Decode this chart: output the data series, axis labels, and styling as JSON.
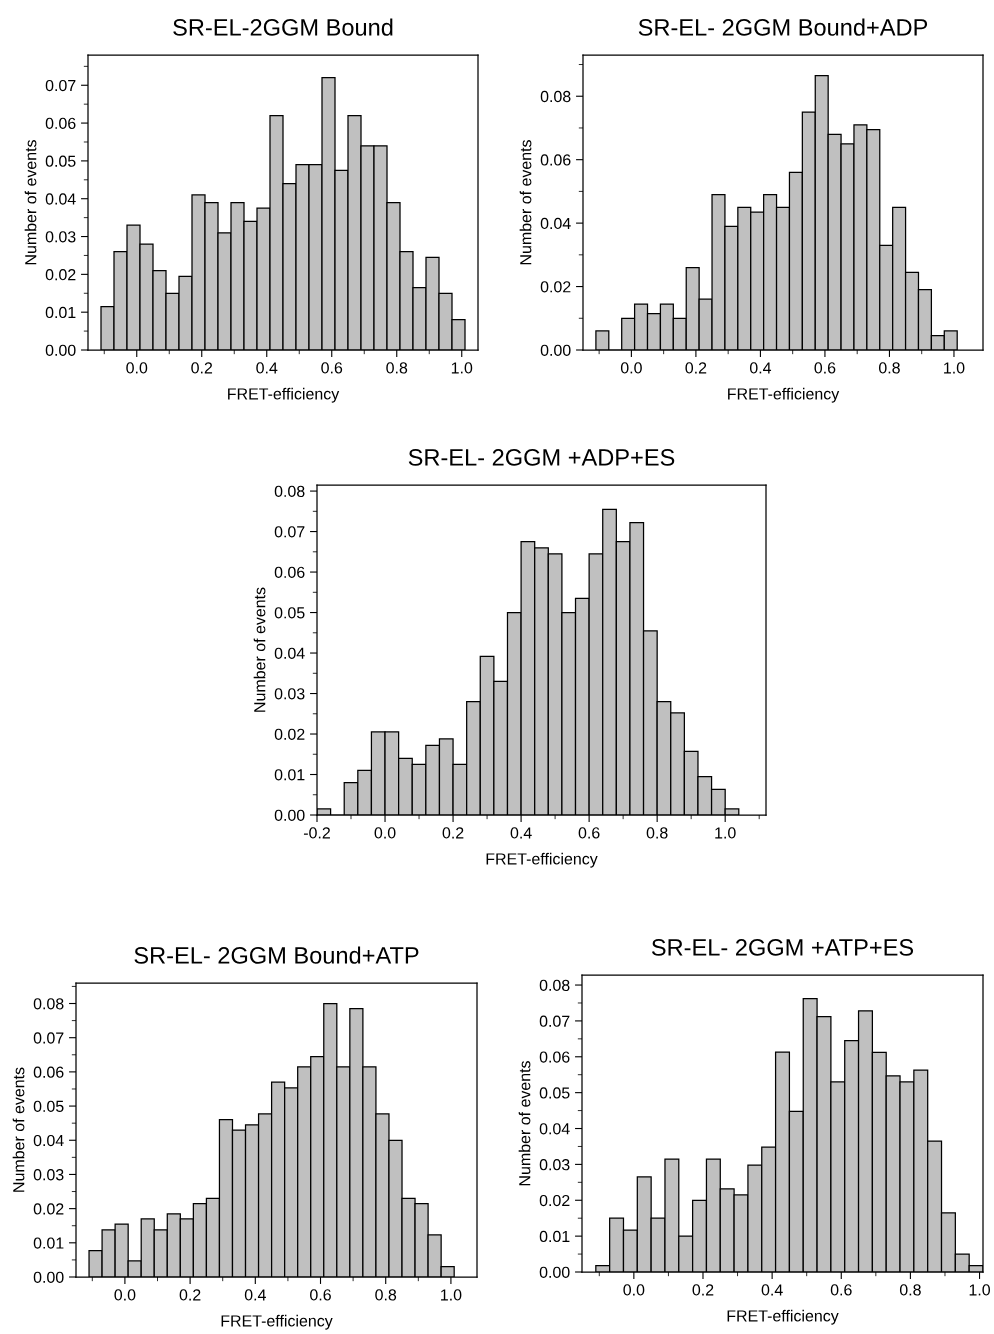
{
  "chart_data": [
    {
      "type": "histogram",
      "title": "SR-EL-2GGM Bound",
      "xlabel": "FRET-efficiency",
      "ylabel": "Number of events",
      "color": "#c0c0c0",
      "bins": [
        -0.11,
        -0.07,
        -0.03,
        0.01,
        0.05,
        0.09,
        0.13,
        0.17,
        0.21,
        0.25,
        0.29,
        0.33,
        0.37,
        0.41,
        0.45,
        0.49,
        0.53,
        0.57,
        0.61,
        0.65,
        0.69,
        0.73,
        0.77,
        0.81,
        0.85,
        0.89,
        0.93,
        0.97,
        1.01
      ],
      "values": [
        0.0115,
        0.026,
        0.033,
        0.028,
        0.021,
        0.015,
        0.0195,
        0.041,
        0.039,
        0.031,
        0.039,
        0.034,
        0.0375,
        0.062,
        0.044,
        0.049,
        0.049,
        0.072,
        0.0475,
        0.062,
        0.054,
        0.054,
        0.039,
        0.026,
        0.0165,
        0.0245,
        0.015,
        0.008
      ],
      "xlim": [
        -0.15,
        1.05
      ],
      "ylim": [
        0,
        0.078
      ],
      "xticks": [
        {
          "value": 0,
          "label": "0.0"
        },
        {
          "value": 0.2,
          "label": "0.2"
        },
        {
          "value": 0.4,
          "label": "0.4"
        },
        {
          "value": 0.6,
          "label": "0.6"
        },
        {
          "value": 0.8,
          "label": "0.8"
        },
        {
          "value": 1,
          "label": "1.0"
        }
      ],
      "yticks": [
        {
          "value": 0,
          "label": "0.00"
        },
        {
          "value": 0.01,
          "label": "0.01"
        },
        {
          "value": 0.02,
          "label": "0.02"
        },
        {
          "value": 0.03,
          "label": "0.03"
        },
        {
          "value": 0.04,
          "label": "0.04"
        },
        {
          "value": 0.05,
          "label": "0.05"
        },
        {
          "value": 0.06,
          "label": "0.06"
        },
        {
          "value": 0.07,
          "label": "0.07"
        }
      ],
      "grid": false
    },
    {
      "type": "histogram",
      "title": "SR-EL- 2GGM Bound+ADP",
      "xlabel": "FRET-efficiency",
      "ylabel": "Number of events",
      "color": "#c0c0c0",
      "bins": [
        -0.11,
        -0.07,
        -0.03,
        0.01,
        0.05,
        0.09,
        0.13,
        0.17,
        0.21,
        0.25,
        0.29,
        0.33,
        0.37,
        0.41,
        0.45,
        0.49,
        0.53,
        0.57,
        0.61,
        0.65,
        0.69,
        0.73,
        0.77,
        0.81,
        0.85,
        0.89,
        0.93,
        0.97,
        1.01
      ],
      "values": [
        0.006,
        0,
        0.01,
        0.0145,
        0.0115,
        0.0145,
        0.01,
        0.026,
        0.016,
        0.049,
        0.039,
        0.045,
        0.0435,
        0.049,
        0.045,
        0.056,
        0.075,
        0.0865,
        0.068,
        0.065,
        0.071,
        0.0695,
        0.033,
        0.045,
        0.0245,
        0.019,
        0.0045,
        0.006
      ],
      "xlim": [
        -0.15,
        1.09
      ],
      "ylim": [
        0,
        0.093
      ],
      "xticks": [
        {
          "value": 0,
          "label": "0.0"
        },
        {
          "value": 0.2,
          "label": "0.2"
        },
        {
          "value": 0.4,
          "label": "0.4"
        },
        {
          "value": 0.6,
          "label": "0.6"
        },
        {
          "value": 0.8,
          "label": "0.8"
        },
        {
          "value": 1,
          "label": "1.0"
        }
      ],
      "yticks": [
        {
          "value": 0,
          "label": "0.00"
        },
        {
          "value": 0.02,
          "label": "0.02"
        },
        {
          "value": 0.04,
          "label": "0.04"
        },
        {
          "value": 0.06,
          "label": "0.06"
        },
        {
          "value": 0.08,
          "label": "0.08"
        }
      ],
      "grid": false
    },
    {
      "type": "histogram",
      "title": "SR-EL- 2GGM +ADP+ES",
      "xlabel": "FRET-efficiency",
      "ylabel": "Number of events",
      "color": "#c0c0c0",
      "bins": [
        -0.2,
        -0.16,
        -0.12,
        -0.08,
        -0.04,
        0.0,
        0.04,
        0.08,
        0.12,
        0.16,
        0.2,
        0.24,
        0.28,
        0.32,
        0.36,
        0.4,
        0.44,
        0.48,
        0.52,
        0.56,
        0.6,
        0.64,
        0.68,
        0.72,
        0.76,
        0.8,
        0.84,
        0.88,
        0.92,
        0.96,
        1.0,
        1.04
      ],
      "values": [
        0.0015,
        0,
        0.008,
        0.011,
        0.0205,
        0.0205,
        0.014,
        0.0125,
        0.0172,
        0.0188,
        0.0125,
        0.028,
        0.0392,
        0.033,
        0.05,
        0.0675,
        0.066,
        0.0645,
        0.05,
        0.0535,
        0.0645,
        0.0755,
        0.0675,
        0.0722,
        0.0455,
        0.028,
        0.0252,
        0.0157,
        0.0095,
        0.0063,
        0.0015
      ],
      "xlim": [
        -0.2,
        1.12
      ],
      "ylim": [
        0,
        0.0815
      ],
      "xticks": [
        {
          "value": -0.2,
          "label": "-0.2"
        },
        {
          "value": 0,
          "label": "0.0"
        },
        {
          "value": 0.2,
          "label": "0.2"
        },
        {
          "value": 0.4,
          "label": "0.4"
        },
        {
          "value": 0.6,
          "label": "0.6"
        },
        {
          "value": 0.8,
          "label": "0.8"
        },
        {
          "value": 1,
          "label": "1.0"
        }
      ],
      "yticks": [
        {
          "value": 0,
          "label": "0.00"
        },
        {
          "value": 0.01,
          "label": "0.01"
        },
        {
          "value": 0.02,
          "label": "0.02"
        },
        {
          "value": 0.03,
          "label": "0.03"
        },
        {
          "value": 0.04,
          "label": "0.04"
        },
        {
          "value": 0.05,
          "label": "0.05"
        },
        {
          "value": 0.06,
          "label": "0.06"
        },
        {
          "value": 0.07,
          "label": "0.07"
        },
        {
          "value": 0.08,
          "label": "0.08"
        }
      ],
      "grid": false
    },
    {
      "type": "histogram",
      "title": "SR-EL- 2GGM Bound+ATP",
      "xlabel": "FRET-efficiency",
      "ylabel": "Number of events",
      "color": "#c0c0c0",
      "bins": [
        -0.11,
        -0.07,
        -0.03,
        0.01,
        0.05,
        0.09,
        0.13,
        0.17,
        0.21,
        0.25,
        0.29,
        0.33,
        0.37,
        0.41,
        0.45,
        0.49,
        0.53,
        0.57,
        0.61,
        0.65,
        0.69,
        0.73,
        0.77,
        0.81,
        0.85,
        0.89,
        0.93,
        0.97,
        1.01
      ],
      "values": [
        0.0077,
        0.0138,
        0.0155,
        0.0047,
        0.017,
        0.0138,
        0.0185,
        0.017,
        0.0215,
        0.023,
        0.046,
        0.043,
        0.0445,
        0.0477,
        0.057,
        0.0553,
        0.0615,
        0.0645,
        0.08,
        0.0615,
        0.0785,
        0.0615,
        0.0477,
        0.04,
        0.023,
        0.0215,
        0.0123,
        0.003
      ],
      "xlim": [
        -0.15,
        1.08
      ],
      "ylim": [
        0,
        0.086
      ],
      "xticks": [
        {
          "value": 0,
          "label": "0.0"
        },
        {
          "value": 0.2,
          "label": "0.2"
        },
        {
          "value": 0.4,
          "label": "0.4"
        },
        {
          "value": 0.6,
          "label": "0.6"
        },
        {
          "value": 0.8,
          "label": "0.8"
        },
        {
          "value": 1,
          "label": "1.0"
        }
      ],
      "yticks": [
        {
          "value": 0,
          "label": "0.00"
        },
        {
          "value": 0.01,
          "label": "0.01"
        },
        {
          "value": 0.02,
          "label": "0.02"
        },
        {
          "value": 0.03,
          "label": "0.03"
        },
        {
          "value": 0.04,
          "label": "0.04"
        },
        {
          "value": 0.05,
          "label": "0.05"
        },
        {
          "value": 0.06,
          "label": "0.06"
        },
        {
          "value": 0.07,
          "label": "0.07"
        },
        {
          "value": 0.08,
          "label": "0.08"
        }
      ],
      "grid": false
    },
    {
      "type": "histogram",
      "title": "SR-EL- 2GGM +ATP+ES",
      "xlabel": "FRET-efficiency",
      "ylabel": "Number of events",
      "color": "#c0c0c0",
      "bins": [
        -0.11,
        -0.07,
        -0.03,
        0.01,
        0.05,
        0.09,
        0.13,
        0.17,
        0.21,
        0.25,
        0.29,
        0.33,
        0.37,
        0.41,
        0.45,
        0.49,
        0.53,
        0.57,
        0.61,
        0.65,
        0.69,
        0.73,
        0.77,
        0.81,
        0.85,
        0.89,
        0.93,
        0.97,
        1.01
      ],
      "values": [
        0.0018,
        0.015,
        0.0117,
        0.0265,
        0.015,
        0.0315,
        0.01,
        0.02,
        0.0315,
        0.0232,
        0.0215,
        0.0298,
        0.0348,
        0.0613,
        0.0448,
        0.0762,
        0.0712,
        0.053,
        0.0645,
        0.0728,
        0.0612,
        0.0547,
        0.053,
        0.0563,
        0.0365,
        0.0165,
        0.005,
        0.0018
      ],
      "xlim": [
        -0.15,
        1.01
      ],
      "ylim": [
        0,
        0.0828
      ],
      "xticks": [
        {
          "value": 0,
          "label": "0.0"
        },
        {
          "value": 0.2,
          "label": "0.2"
        },
        {
          "value": 0.4,
          "label": "0.4"
        },
        {
          "value": 0.6,
          "label": "0.6"
        },
        {
          "value": 0.8,
          "label": "0.8"
        },
        {
          "value": 1,
          "label": "1.0"
        }
      ],
      "yticks": [
        {
          "value": 0,
          "label": "0.00"
        },
        {
          "value": 0.01,
          "label": "0.01"
        },
        {
          "value": 0.02,
          "label": "0.02"
        },
        {
          "value": 0.03,
          "label": "0.03"
        },
        {
          "value": 0.04,
          "label": "0.04"
        },
        {
          "value": 0.05,
          "label": "0.05"
        },
        {
          "value": 0.06,
          "label": "0.06"
        },
        {
          "value": 0.07,
          "label": "0.07"
        },
        {
          "value": 0.08,
          "label": "0.08"
        }
      ],
      "grid": false
    }
  ]
}
